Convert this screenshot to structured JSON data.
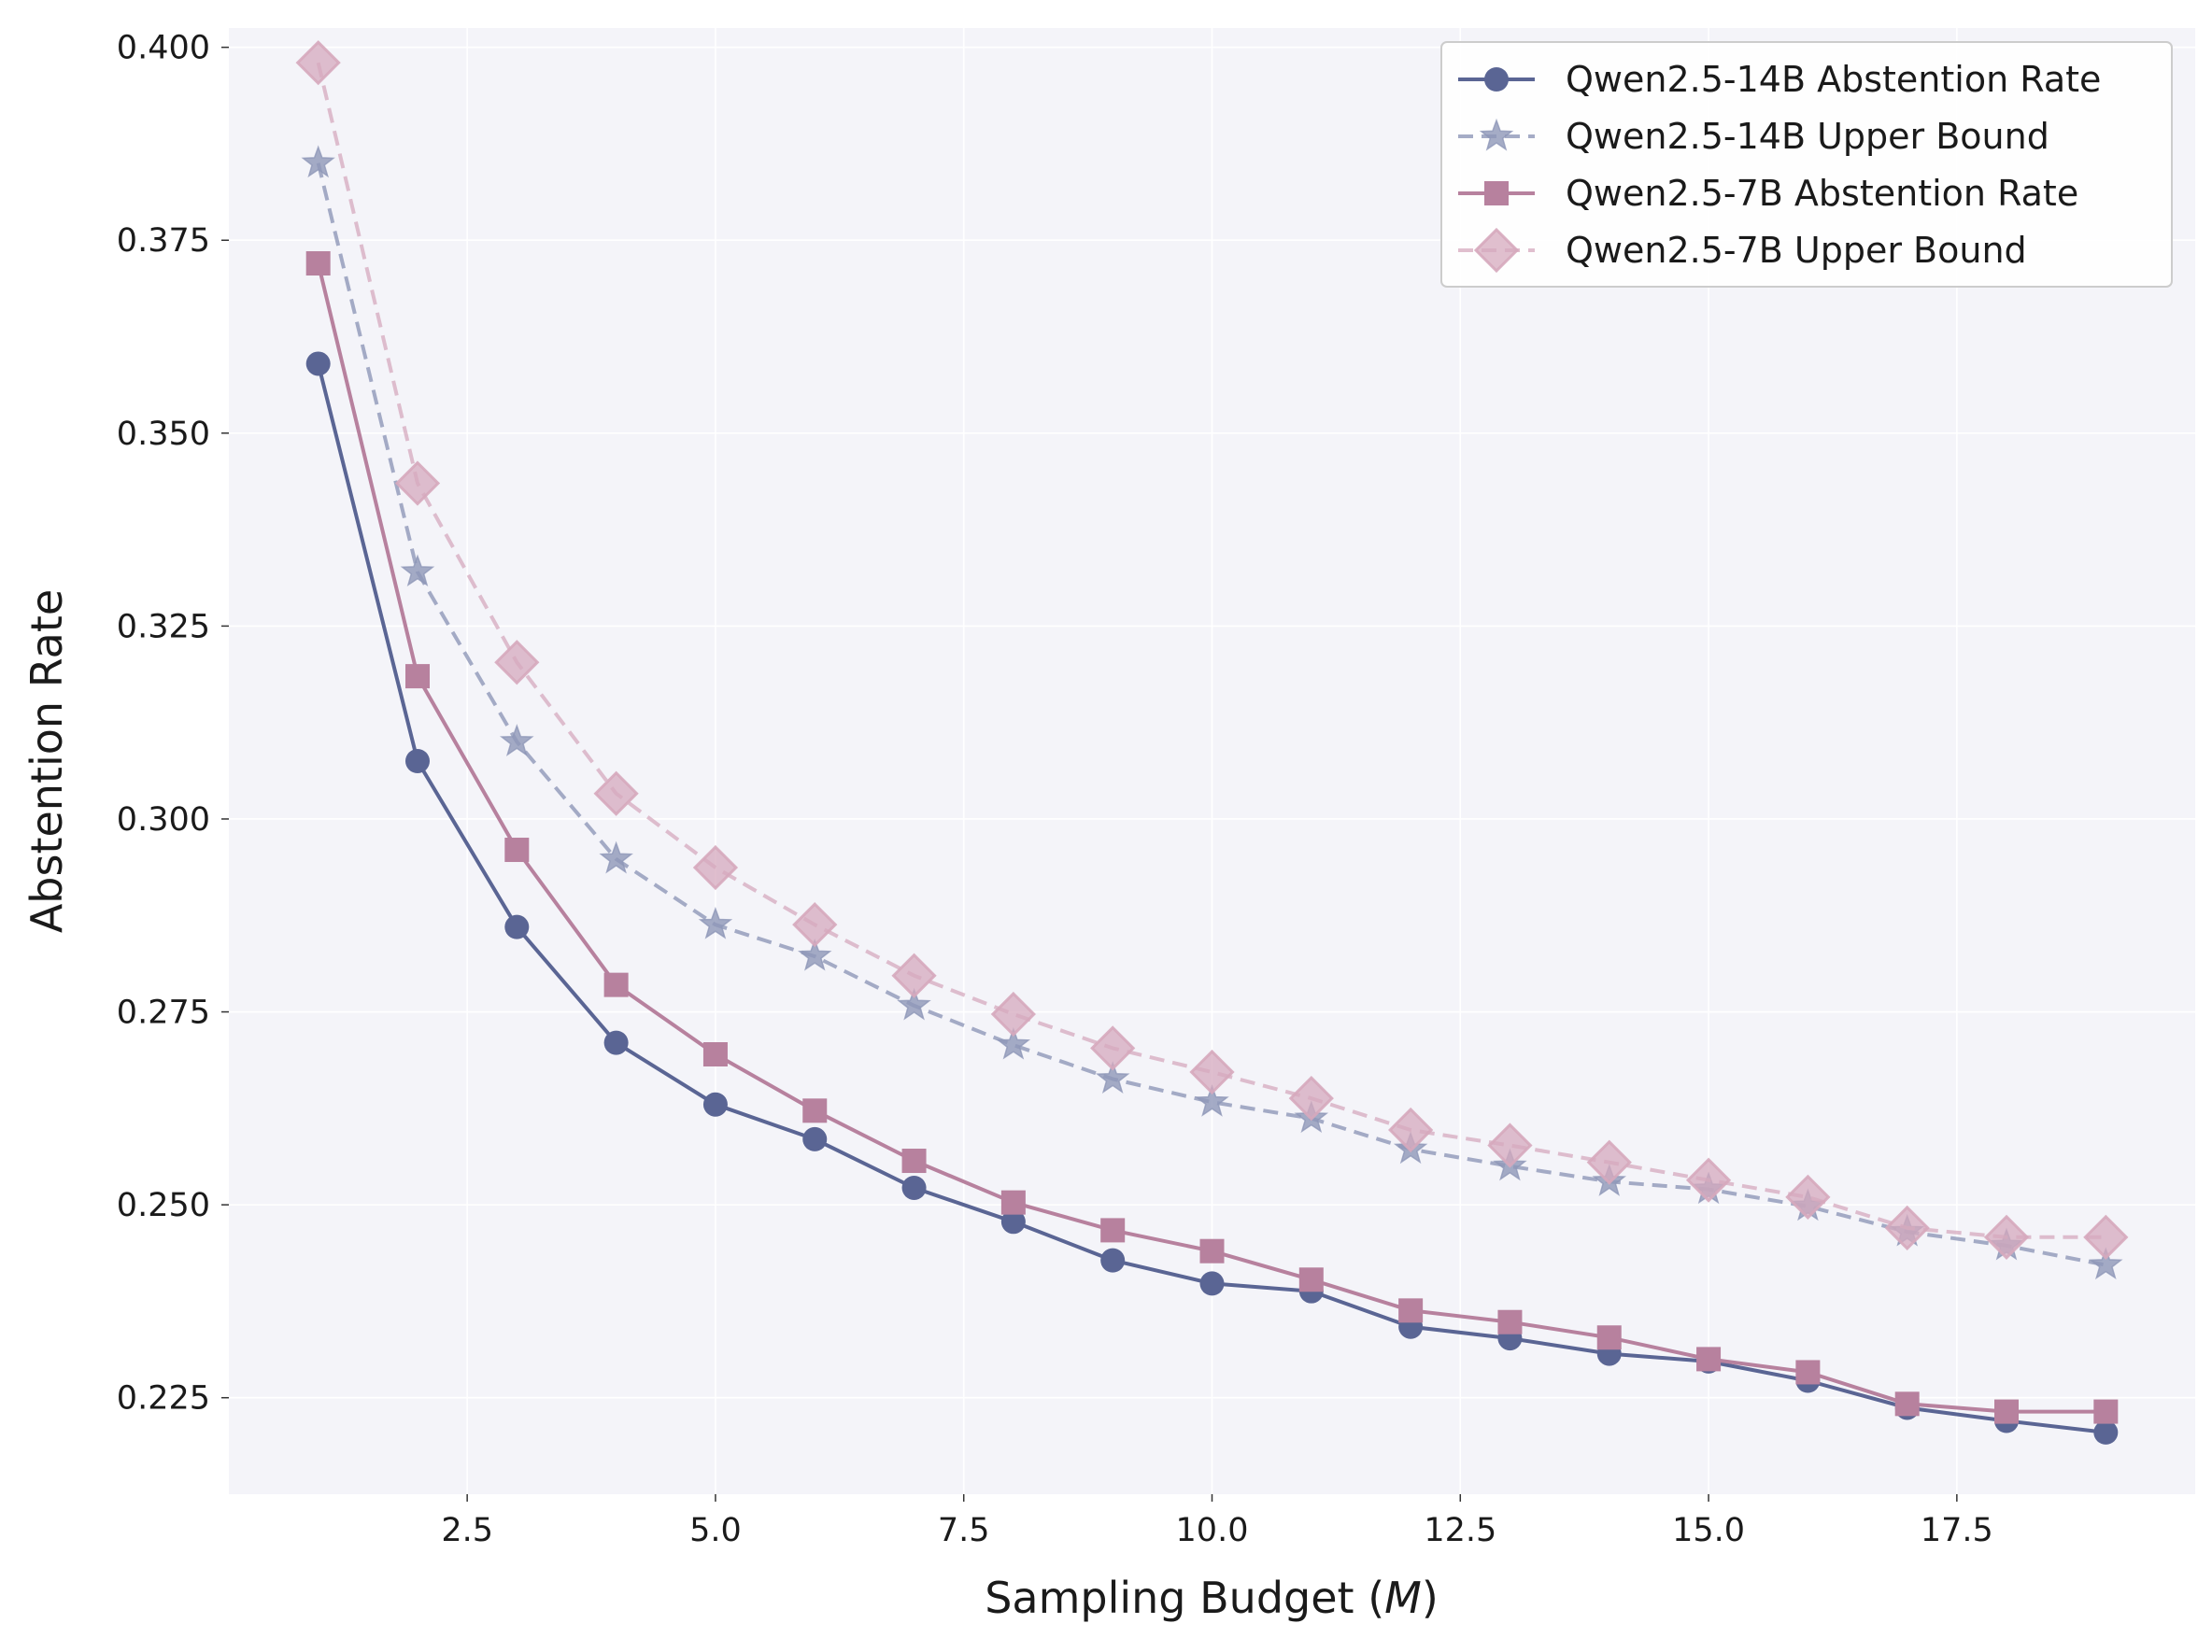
{
  "chart_data": {
    "type": "line",
    "title": "",
    "xlabel": "Sampling Budget (",
    "xlabel_var": "M",
    "xlabel_close": ")",
    "ylabel": "Abstention Rate",
    "xlim": [
      0.1,
      19.9
    ],
    "ylim": [
      0.2125,
      0.4025
    ],
    "x_ticks": [
      2.5,
      5.0,
      7.5,
      10.0,
      12.5,
      15.0,
      17.5
    ],
    "x_tick_labels": [
      "2.5",
      "5.0",
      "7.5",
      "10.0",
      "12.5",
      "15.0",
      "17.5"
    ],
    "y_ticks": [
      0.225,
      0.25,
      0.275,
      0.3,
      0.325,
      0.35,
      0.375,
      0.4
    ],
    "y_tick_labels": [
      "0.225",
      "0.250",
      "0.275",
      "0.300",
      "0.325",
      "0.350",
      "0.375",
      "0.400"
    ],
    "grid": true,
    "legend_position": "top-right",
    "x": [
      1,
      2,
      3,
      4,
      5,
      6,
      7,
      8,
      9,
      10,
      11,
      12,
      13,
      14,
      15,
      16,
      17,
      18,
      19
    ],
    "series": [
      {
        "name": "Qwen2.5-14B Abstention Rate",
        "color": "#5a6594",
        "style": "solid",
        "marker": "circle",
        "opacity": 1.0,
        "values": [
          0.359,
          0.3075,
          0.286,
          0.271,
          0.263,
          0.2585,
          0.2522,
          0.2478,
          0.2428,
          0.2398,
          0.2388,
          0.2342,
          0.2327,
          0.2307,
          0.2297,
          0.2272,
          0.2237,
          0.222,
          0.2205
        ]
      },
      {
        "name": "Qwen2.5-14B Upper Bound",
        "color": "#8e97b8",
        "style": "dashed",
        "marker": "star",
        "opacity": 0.8,
        "values": [
          0.385,
          0.332,
          0.31,
          0.2948,
          0.2863,
          0.2822,
          0.2758,
          0.2707,
          0.2663,
          0.2633,
          0.2612,
          0.2572,
          0.255,
          0.253,
          0.252,
          0.2498,
          0.2465,
          0.2447,
          0.2422
        ]
      },
      {
        "name": "Qwen2.5-7B Abstention Rate",
        "color": "#b7819e",
        "style": "solid",
        "marker": "square",
        "opacity": 1.0,
        "values": [
          0.372,
          0.3185,
          0.296,
          0.2785,
          0.2695,
          0.2622,
          0.2557,
          0.2503,
          0.2467,
          0.244,
          0.2403,
          0.2363,
          0.2348,
          0.2328,
          0.23,
          0.2283,
          0.2242,
          0.2232,
          0.2232
        ]
      },
      {
        "name": "Qwen2.5-7B Upper Bound",
        "color": "#d6a9bd",
        "style": "dashed",
        "marker": "diamond",
        "opacity": 0.75,
        "values": [
          0.398,
          0.3435,
          0.3203,
          0.3033,
          0.2937,
          0.2863,
          0.2797,
          0.2747,
          0.2703,
          0.2672,
          0.2638,
          0.2597,
          0.2577,
          0.2555,
          0.2532,
          0.251,
          0.247,
          0.2458,
          0.2458
        ]
      }
    ]
  },
  "colors": {
    "plot_background": "#f4f4f9",
    "grid": "#ffffff",
    "legend_border": "#cccccc"
  }
}
